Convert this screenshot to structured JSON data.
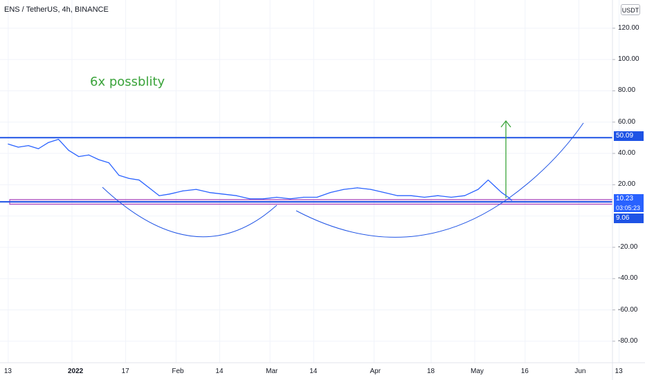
{
  "title": "ENS / TetherUS, 4h, BINANCE",
  "currency": "USDT",
  "annotation": "6x possblity",
  "price_tags": {
    "upper": "50.09",
    "current": "10.23",
    "countdown": "03:05:23",
    "lower": "9.06"
  },
  "colors": {
    "price_line": "#2962ff",
    "levels": "#1e53e5",
    "zone": "#9c27b0",
    "arrow": "#3aa33a",
    "grid": "#f0f3fa"
  },
  "chart_data": {
    "type": "line",
    "ylim": [
      -95,
      130
    ],
    "y_ticks": [
      "120.00",
      "100.00",
      "80.00",
      "60.00",
      "40.00",
      "20.00",
      "-20.00",
      "-40.00",
      "-60.00",
      "-80.00"
    ],
    "x_ticks": [
      "13",
      "2022",
      "17",
      "Feb",
      "14",
      "Mar",
      "14",
      "Apr",
      "18",
      "May",
      "16",
      "Jun",
      "13"
    ],
    "horizontal_levels": [
      50.09,
      9.06
    ],
    "zone": [
      7.5,
      10.5
    ],
    "current_price": 10.23,
    "series": [
      {
        "x": [
          "Dec 13",
          "Dec 16",
          "Dec 19",
          "Dec 22",
          "Dec 25",
          "Dec 28",
          "Dec 31",
          "Jan 3",
          "Jan 6",
          "Jan 9",
          "Jan 12",
          "Jan 15",
          "Jan 18",
          "Jan 21",
          "Jan 24",
          "Jan 27",
          "Jan 30",
          "Feb 3",
          "Feb 7",
          "Feb 11",
          "Feb 15",
          "Feb 19",
          "Feb 23",
          "Feb 27",
          "Mar 3",
          "Mar 7",
          "Mar 11",
          "Mar 15",
          "Mar 19",
          "Mar 23",
          "Mar 27",
          "Mar 31",
          "Apr 4",
          "Apr 8",
          "Apr 12",
          "Apr 16",
          "Apr 20",
          "Apr 24",
          "Apr 28",
          "May 2",
          "May 5",
          "May 7",
          "May 9",
          "May 11",
          "May 12"
        ],
        "values": [
          46,
          44,
          45,
          43,
          47,
          49,
          42,
          38,
          39,
          36,
          34,
          26,
          24,
          23,
          18,
          13,
          14,
          16,
          17,
          15,
          14,
          13,
          11,
          11,
          12,
          11,
          12,
          12,
          15,
          17,
          18,
          17,
          15,
          13,
          13,
          12,
          13,
          12,
          13,
          17,
          23,
          19,
          15,
          12,
          10
        ]
      }
    ]
  }
}
